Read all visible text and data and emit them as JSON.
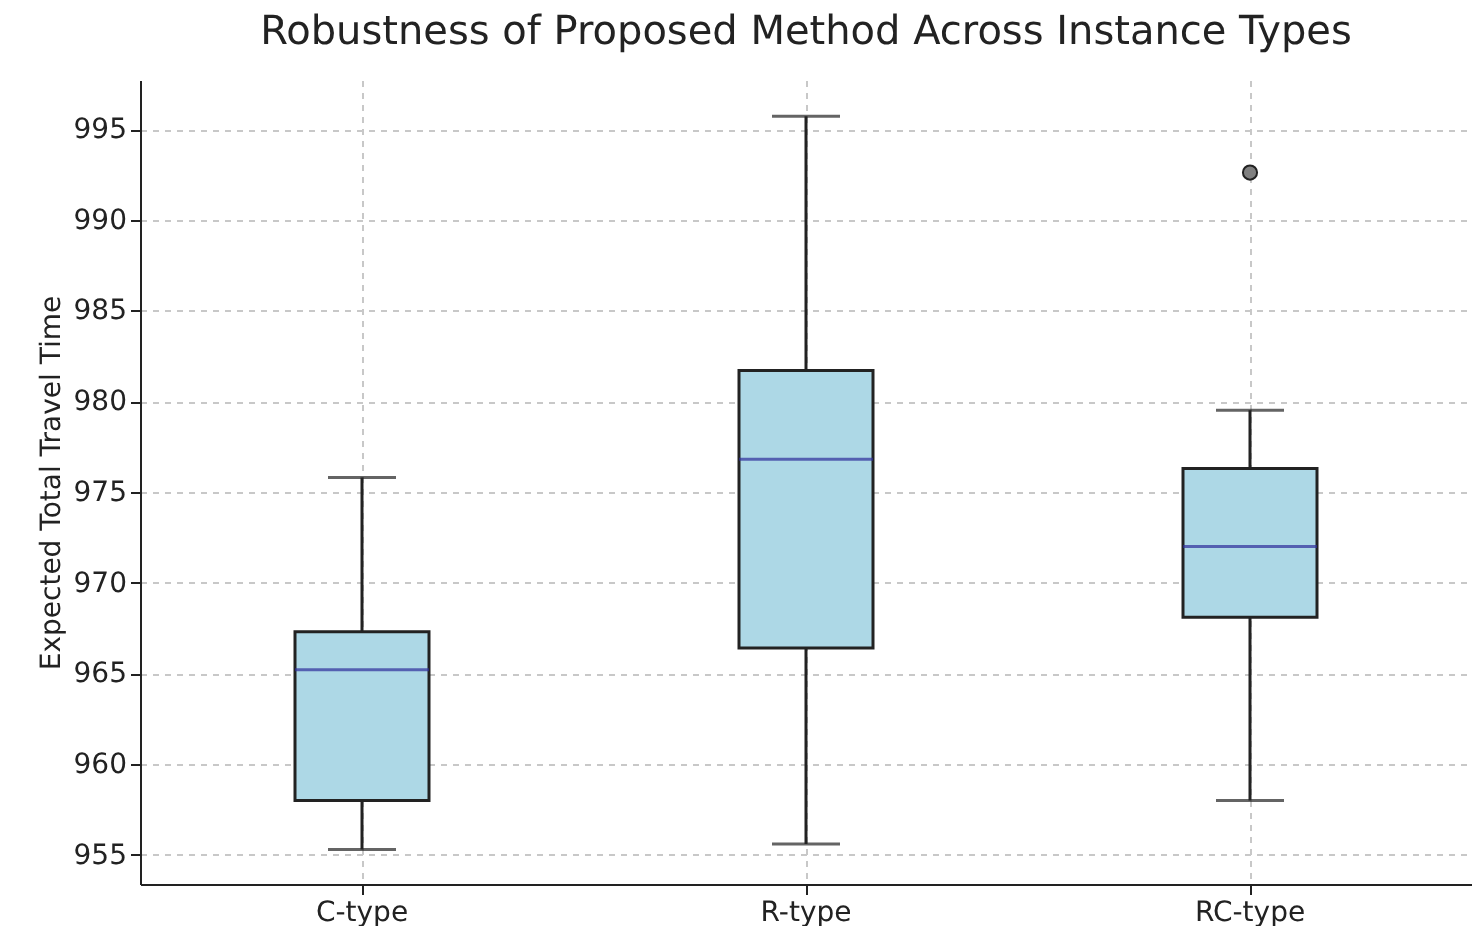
{
  "chart_data": {
    "type": "box",
    "title": "Robustness of Proposed Method Across Instance Types",
    "ylabel": "Expected Total Travel Time",
    "categories": [
      "C-type",
      "R-type",
      "RC-type"
    ],
    "boxes": [
      {
        "low": 955.3,
        "q1": 958.0,
        "median": 965.2,
        "q3": 967.3,
        "high": 975.8
      },
      {
        "low": 955.6,
        "q1": 966.4,
        "median": 976.8,
        "q3": 981.7,
        "high": 995.7
      },
      {
        "low": 958.0,
        "q1": 968.1,
        "median": 972.0,
        "q3": 976.3,
        "high": 979.5,
        "outliers": [
          992.6
        ]
      }
    ],
    "color": "#add8e6",
    "ylim": [
      953.4,
      997.7
    ],
    "yticks": [
      955,
      960,
      965,
      970,
      975,
      980,
      985,
      990,
      995
    ],
    "grid": true
  }
}
